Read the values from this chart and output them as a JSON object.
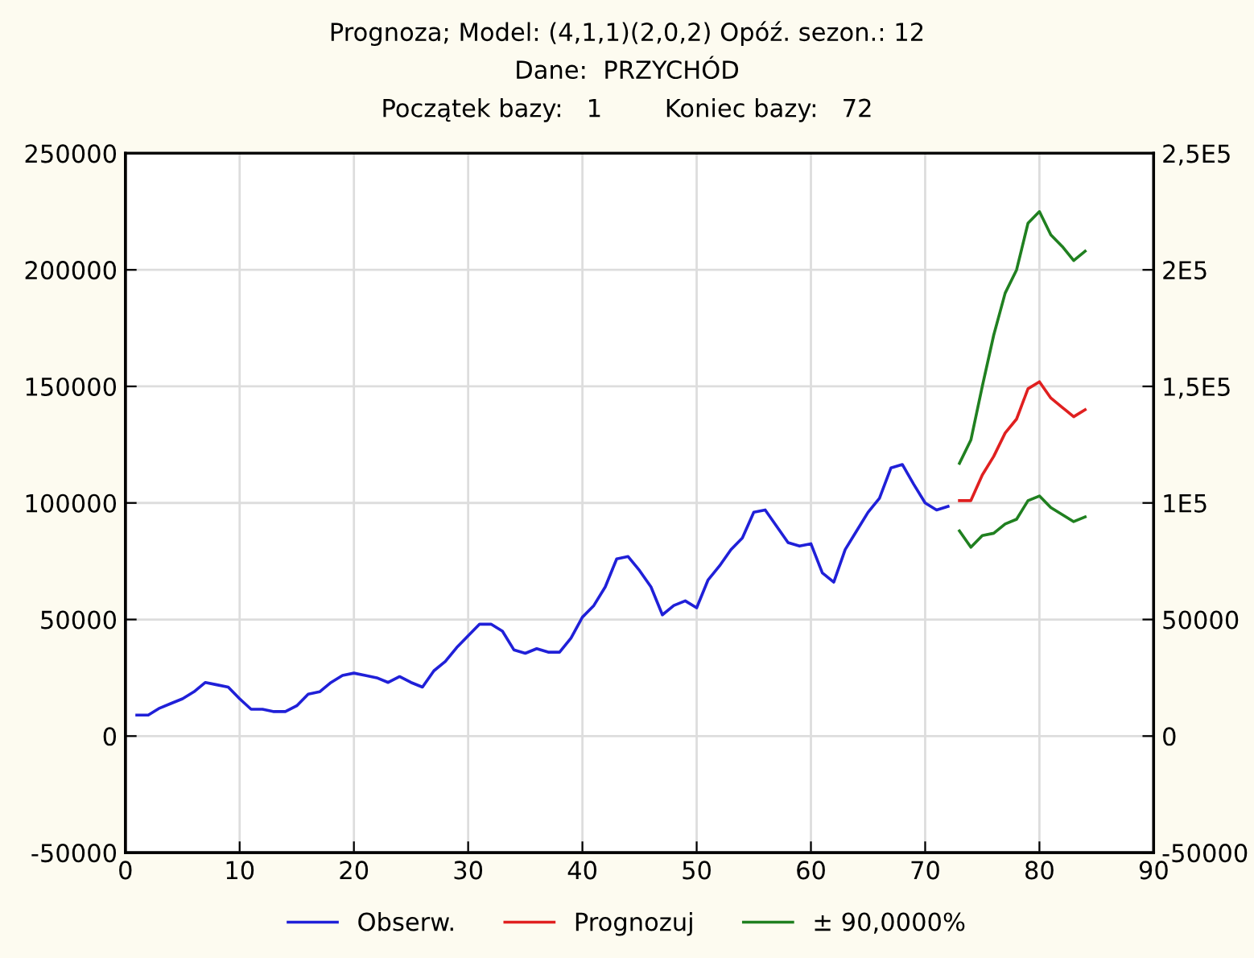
{
  "chart_data": {
    "type": "line",
    "title": "Prognoza; Model: (4,1,1)(2,0,2) Opóź. sezon.: 12",
    "subtitle": "Dane:  PRZYCHÓD",
    "annotations": [
      "Początek bazy:   1        Koniec bazy:   72"
    ],
    "xlim": [
      0,
      90
    ],
    "xticks": [
      0,
      10,
      20,
      30,
      40,
      50,
      60,
      70,
      80,
      90
    ],
    "ylim": [
      -50000,
      250000
    ],
    "yticks": [
      -50000,
      0,
      50000,
      100000,
      150000,
      200000,
      250000
    ],
    "y2lim": [
      -50000,
      250000
    ],
    "y2ticks": [
      {
        "value": -50000,
        "label": "-50000"
      },
      {
        "value": 0,
        "label": "0"
      },
      {
        "value": 50000,
        "label": "50000"
      },
      {
        "value": 100000,
        "label": "1E5"
      },
      {
        "value": 150000,
        "label": "1,5E5"
      },
      {
        "value": 200000,
        "label": "2E5"
      },
      {
        "value": 250000,
        "label": "2,5E5"
      }
    ],
    "grid": true,
    "legend": "bottom",
    "marker": "none",
    "line_style": "solid",
    "series": [
      {
        "name": "Obserw.",
        "color": "#2020d8",
        "x": [
          1,
          2,
          3,
          4,
          5,
          6,
          7,
          8,
          9,
          10,
          11,
          12,
          13,
          14,
          15,
          16,
          17,
          18,
          19,
          20,
          21,
          22,
          23,
          24,
          25,
          26,
          27,
          28,
          29,
          30,
          31,
          32,
          33,
          34,
          35,
          36,
          37,
          38,
          39,
          40,
          41,
          42,
          43,
          44,
          45,
          46,
          47,
          48,
          49,
          50,
          51,
          52,
          53,
          54,
          55,
          56,
          57,
          58,
          59,
          60,
          61,
          62,
          63,
          64,
          65,
          66,
          67,
          68,
          69,
          70,
          71,
          72
        ],
        "values": [
          9000,
          9000,
          12000,
          14000,
          16000,
          19000,
          23000,
          22000,
          21000,
          16000,
          11500,
          11500,
          10500,
          10500,
          13000,
          18000,
          19000,
          23000,
          26000,
          27000,
          26000,
          25000,
          23000,
          25500,
          23000,
          21000,
          28000,
          32000,
          38000,
          43000,
          48000,
          48000,
          45000,
          37000,
          35500,
          37500,
          36000,
          36000,
          42000,
          51000,
          56000,
          64000,
          76000,
          77000,
          71000,
          64000,
          52000,
          56000,
          58000,
          55000,
          67000,
          73000,
          80000,
          85000,
          96000,
          97000,
          90000,
          83000,
          81500,
          82500,
          70000,
          66000,
          80000,
          88000,
          96000,
          102000,
          115000,
          116500,
          108000,
          100000,
          97000,
          98500
        ]
      },
      {
        "name": "Prognozuj",
        "color": "#e02020",
        "x": [
          73,
          74,
          75,
          76,
          77,
          78,
          79,
          80,
          81,
          82,
          83,
          84
        ],
        "values": [
          101000,
          101000,
          112000,
          120000,
          130000,
          136000,
          149000,
          152000,
          145000,
          141000,
          137000,
          140000
        ]
      },
      {
        "name": "± 90,0000%",
        "color": "#208020",
        "x": [
          73,
          74,
          75,
          76,
          77,
          78,
          79,
          80,
          81,
          82,
          83,
          84
        ],
        "values": [
          117000,
          127000,
          150000,
          172000,
          190000,
          200000,
          220000,
          225000,
          215000,
          210000,
          204000,
          208000
        ]
      },
      {
        "color": "#208020",
        "x": [
          73,
          74,
          75,
          76,
          77,
          78,
          79,
          80,
          81,
          82,
          83,
          84
        ],
        "values": [
          88000,
          81000,
          86000,
          87000,
          91000,
          93000,
          101000,
          103000,
          98000,
          95000,
          92000,
          94000
        ]
      }
    ]
  }
}
